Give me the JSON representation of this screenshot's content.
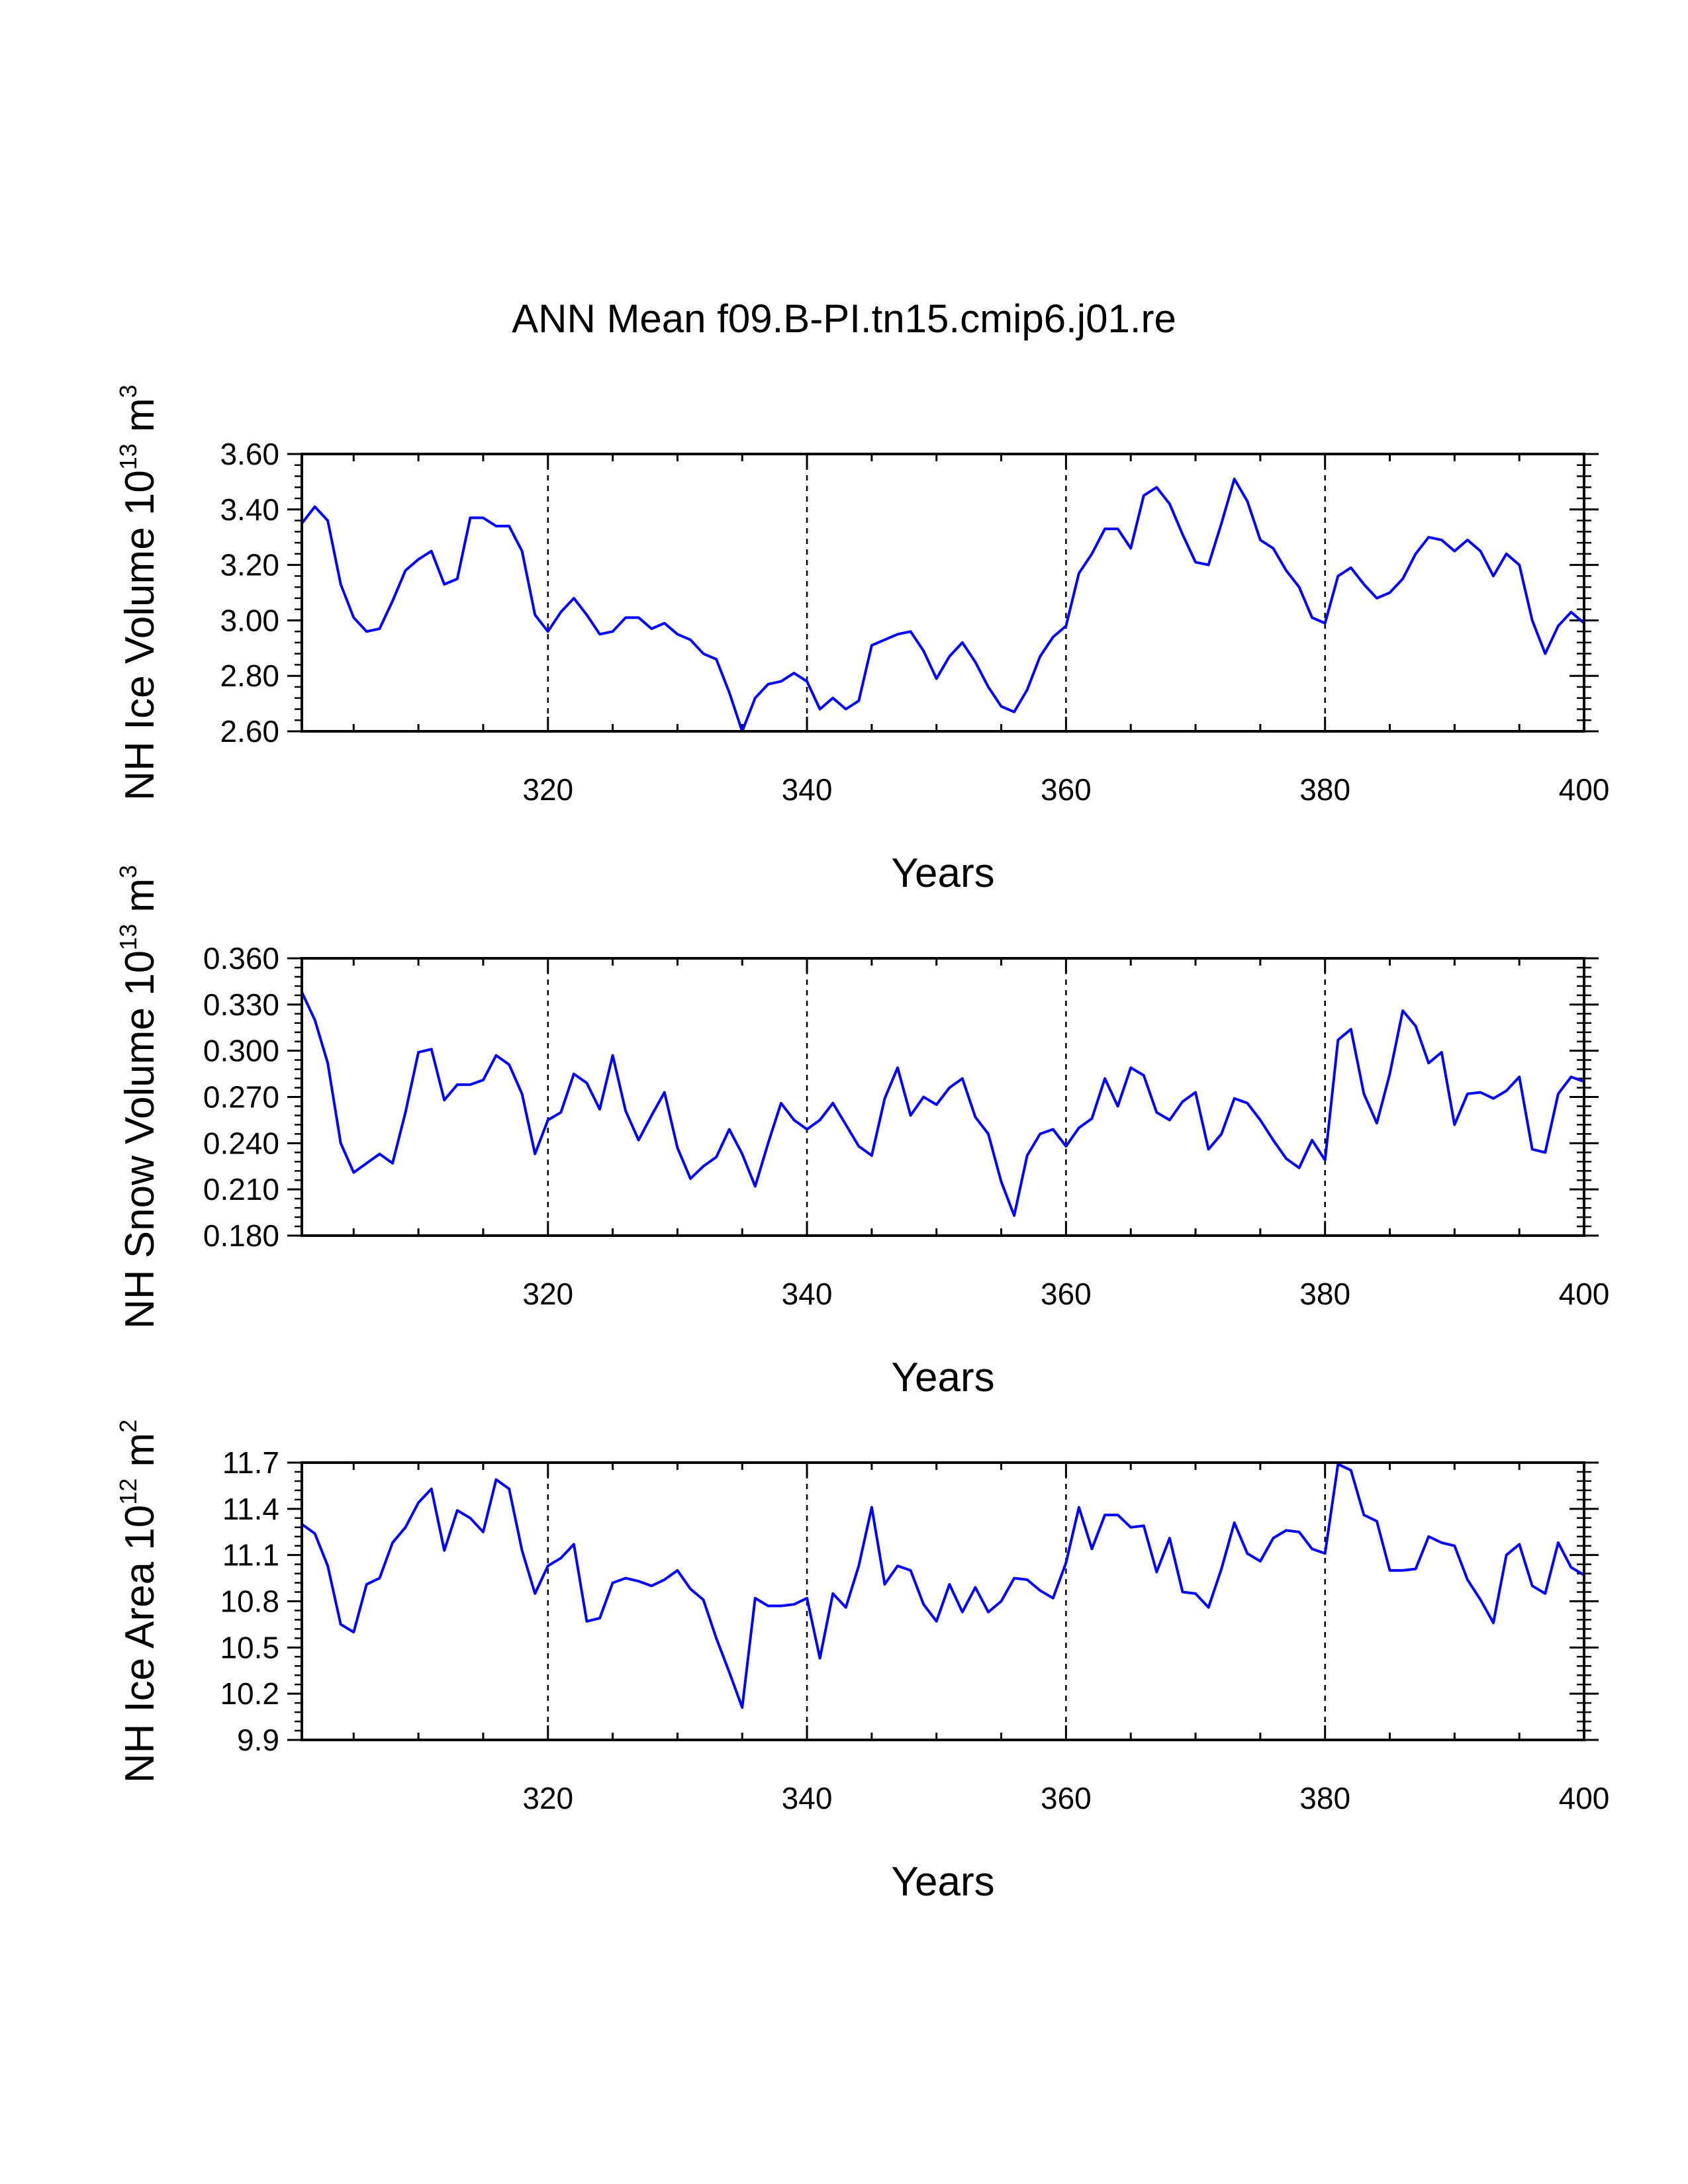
{
  "title": "ANN Mean f09.B-PI.tn15.cmip6.j01.re",
  "colors": {
    "series": "#0000ff",
    "axis": "#000000",
    "grid": "#000000",
    "background": "#ffffff"
  },
  "chart_data": [
    {
      "type": "line",
      "ylabel": {
        "prefix": "NH Ice Volume 10",
        "exp": "13",
        "unit": " m",
        "unit_exp": "3"
      },
      "xlabel": "Years",
      "xlim": [
        301,
        400
      ],
      "ylim": [
        2.6,
        3.6
      ],
      "x_ticks": [
        320,
        340,
        360,
        380,
        400
      ],
      "x_tick_labels": [
        "320",
        "340",
        "360",
        "380",
        "400"
      ],
      "y_ticks": [
        2.6,
        2.8,
        3.0,
        3.2,
        3.4,
        3.6
      ],
      "y_tick_labels": [
        "2.60",
        "2.80",
        "3.00",
        "3.20",
        "3.40",
        "3.60"
      ],
      "dashed_vlines": [
        320,
        340,
        360,
        380
      ],
      "x": [
        301,
        302,
        303,
        304,
        305,
        306,
        307,
        308,
        309,
        310,
        311,
        312,
        313,
        314,
        315,
        316,
        317,
        318,
        319,
        320,
        321,
        322,
        323,
        324,
        325,
        326,
        327,
        328,
        329,
        330,
        331,
        332,
        333,
        334,
        335,
        336,
        337,
        338,
        339,
        340,
        341,
        342,
        343,
        344,
        345,
        346,
        347,
        348,
        349,
        350,
        351,
        352,
        353,
        354,
        355,
        356,
        357,
        358,
        359,
        360,
        361,
        362,
        363,
        364,
        365,
        366,
        367,
        368,
        369,
        370,
        371,
        372,
        373,
        374,
        375,
        376,
        377,
        378,
        379,
        380,
        381,
        382,
        383,
        384,
        385,
        386,
        387,
        388,
        389,
        390,
        391,
        392,
        393,
        394,
        395,
        396,
        397,
        398,
        399,
        400
      ],
      "values": [
        3.35,
        3.41,
        3.36,
        3.13,
        3.01,
        2.96,
        2.97,
        3.07,
        3.18,
        3.22,
        3.25,
        3.13,
        3.15,
        3.37,
        3.37,
        3.34,
        3.34,
        3.25,
        3.02,
        2.96,
        3.03,
        3.08,
        3.02,
        2.95,
        2.96,
        3.01,
        3.01,
        2.97,
        2.99,
        2.95,
        2.93,
        2.88,
        2.86,
        2.74,
        2.6,
        2.72,
        2.77,
        2.78,
        2.81,
        2.78,
        2.68,
        2.72,
        2.68,
        2.71,
        2.91,
        2.93,
        2.95,
        2.96,
        2.89,
        2.79,
        2.87,
        2.92,
        2.85,
        2.76,
        2.69,
        2.67,
        2.75,
        2.87,
        2.94,
        2.98,
        3.17,
        3.24,
        3.33,
        3.33,
        3.26,
        3.45,
        3.48,
        3.42,
        3.31,
        3.21,
        3.2,
        3.35,
        3.51,
        3.43,
        3.29,
        3.26,
        3.18,
        3.12,
        3.01,
        2.99,
        3.16,
        3.19,
        3.13,
        3.08,
        3.1,
        3.15,
        3.24,
        3.3,
        3.29,
        3.25,
        3.29,
        3.25,
        3.16,
        3.24,
        3.2,
        3.0,
        2.88,
        2.98,
        3.03,
        2.99
      ]
    },
    {
      "type": "line",
      "ylabel": {
        "prefix": "NH Snow Volume 10",
        "exp": "13",
        "unit": " m",
        "unit_exp": "3"
      },
      "xlabel": "Years",
      "xlim": [
        301,
        400
      ],
      "ylim": [
        0.18,
        0.36
      ],
      "x_ticks": [
        320,
        340,
        360,
        380,
        400
      ],
      "x_tick_labels": [
        "320",
        "340",
        "360",
        "380",
        "400"
      ],
      "y_ticks": [
        0.18,
        0.21,
        0.24,
        0.27,
        0.3,
        0.33,
        0.36
      ],
      "y_tick_labels": [
        "0.180",
        "0.210",
        "0.240",
        "0.270",
        "0.300",
        "0.330",
        "0.360"
      ],
      "dashed_vlines": [
        320,
        340,
        360,
        380
      ],
      "x": [
        301,
        302,
        303,
        304,
        305,
        306,
        307,
        308,
        309,
        310,
        311,
        312,
        313,
        314,
        315,
        316,
        317,
        318,
        319,
        320,
        321,
        322,
        323,
        324,
        325,
        326,
        327,
        328,
        329,
        330,
        331,
        332,
        333,
        334,
        335,
        336,
        337,
        338,
        339,
        340,
        341,
        342,
        343,
        344,
        345,
        346,
        347,
        348,
        349,
        350,
        351,
        352,
        353,
        354,
        355,
        356,
        357,
        358,
        359,
        360,
        361,
        362,
        363,
        364,
        365,
        366,
        367,
        368,
        369,
        370,
        371,
        372,
        373,
        374,
        375,
        376,
        377,
        378,
        379,
        380,
        381,
        382,
        383,
        384,
        385,
        386,
        387,
        388,
        389,
        390,
        391,
        392,
        393,
        394,
        395,
        396,
        397,
        398,
        399,
        400
      ],
      "values": [
        0.338,
        0.32,
        0.292,
        0.24,
        0.221,
        0.227,
        0.233,
        0.227,
        0.26,
        0.299,
        0.301,
        0.268,
        0.278,
        0.278,
        0.281,
        0.297,
        0.291,
        0.272,
        0.233,
        0.255,
        0.26,
        0.285,
        0.279,
        0.262,
        0.297,
        0.261,
        0.242,
        0.258,
        0.273,
        0.237,
        0.217,
        0.225,
        0.231,
        0.249,
        0.233,
        0.212,
        0.24,
        0.266,
        0.255,
        0.249,
        0.255,
        0.266,
        0.252,
        0.238,
        0.232,
        0.269,
        0.289,
        0.258,
        0.27,
        0.265,
        0.276,
        0.282,
        0.257,
        0.246,
        0.215,
        0.193,
        0.232,
        0.246,
        0.249,
        0.238,
        0.25,
        0.256,
        0.282,
        0.264,
        0.289,
        0.284,
        0.26,
        0.255,
        0.267,
        0.273,
        0.236,
        0.246,
        0.269,
        0.266,
        0.255,
        0.242,
        0.23,
        0.224,
        0.242,
        0.229,
        0.307,
        0.314,
        0.272,
        0.253,
        0.285,
        0.326,
        0.316,
        0.292,
        0.299,
        0.252,
        0.272,
        0.273,
        0.269,
        0.274,
        0.283,
        0.236,
        0.234,
        0.272,
        0.283,
        0.28
      ]
    },
    {
      "type": "line",
      "ylabel": {
        "prefix": "NH Ice Area 10",
        "exp": "12",
        "unit": " m",
        "unit_exp": "2"
      },
      "xlabel": "Years",
      "xlim": [
        301,
        400
      ],
      "ylim": [
        9.9,
        11.7
      ],
      "x_ticks": [
        320,
        340,
        360,
        380,
        400
      ],
      "x_tick_labels": [
        "320",
        "340",
        "360",
        "380",
        "400"
      ],
      "y_ticks": [
        9.9,
        10.2,
        10.5,
        10.8,
        11.1,
        11.4,
        11.7
      ],
      "y_tick_labels": [
        "9.9",
        "10.2",
        "10.5",
        "10.8",
        "11.1",
        "11.4",
        "11.7"
      ],
      "dashed_vlines": [
        320,
        340,
        360,
        380
      ],
      "x": [
        301,
        302,
        303,
        304,
        305,
        306,
        307,
        308,
        309,
        310,
        311,
        312,
        313,
        314,
        315,
        316,
        317,
        318,
        319,
        320,
        321,
        322,
        323,
        324,
        325,
        326,
        327,
        328,
        329,
        330,
        331,
        332,
        333,
        334,
        335,
        336,
        337,
        338,
        339,
        340,
        341,
        342,
        343,
        344,
        345,
        346,
        347,
        348,
        349,
        350,
        351,
        352,
        353,
        354,
        355,
        356,
        357,
        358,
        359,
        360,
        361,
        362,
        363,
        364,
        365,
        366,
        367,
        368,
        369,
        370,
        371,
        372,
        373,
        374,
        375,
        376,
        377,
        378,
        379,
        380,
        381,
        382,
        383,
        384,
        385,
        386,
        387,
        388,
        389,
        390,
        391,
        392,
        393,
        394,
        395,
        396,
        397,
        398,
        399,
        400
      ],
      "values": [
        11.3,
        11.24,
        11.03,
        10.65,
        10.6,
        10.91,
        10.95,
        11.18,
        11.28,
        11.44,
        11.53,
        11.13,
        11.39,
        11.34,
        11.25,
        11.59,
        11.53,
        11.13,
        10.85,
        11.03,
        11.08,
        11.17,
        10.67,
        10.69,
        10.92,
        10.95,
        10.93,
        10.9,
        10.94,
        11.0,
        10.88,
        10.81,
        10.56,
        10.34,
        10.11,
        10.82,
        10.77,
        10.77,
        10.78,
        10.82,
        10.43,
        10.85,
        10.76,
        11.03,
        11.41,
        10.91,
        11.03,
        11.0,
        10.78,
        10.67,
        10.91,
        10.73,
        10.89,
        10.73,
        10.8,
        10.95,
        10.94,
        10.87,
        10.82,
        11.05,
        11.41,
        11.14,
        11.36,
        11.36,
        11.28,
        11.29,
        10.99,
        11.21,
        10.86,
        10.85,
        10.76,
        11.01,
        11.31,
        11.11,
        11.06,
        11.21,
        11.26,
        11.25,
        11.14,
        11.11,
        11.69,
        11.65,
        11.36,
        11.32,
        11.0,
        11.0,
        11.01,
        11.22,
        11.18,
        11.16,
        10.94,
        10.81,
        10.66,
        11.1,
        11.17,
        10.9,
        10.85,
        11.18,
        11.02,
        10.97
      ]
    }
  ]
}
